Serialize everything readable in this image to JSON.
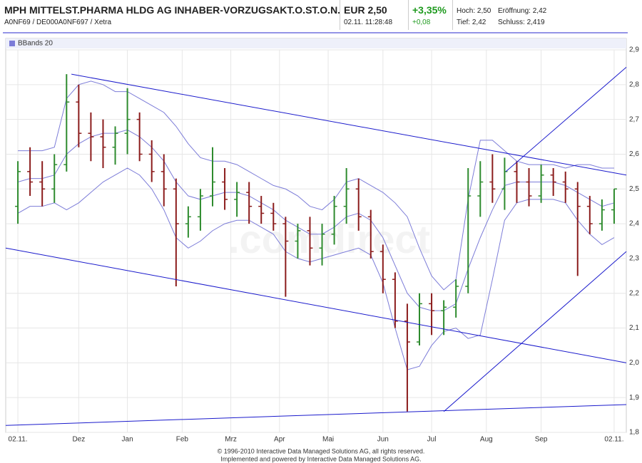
{
  "header": {
    "title": "MPH MITTELST.PHARMA HLDG AG INHABER-VORZUGSAKT.O.ST.O.N.",
    "subtitle": "A0NF69 / DE000A0NF697 / Xetra",
    "price": "EUR 2,50",
    "time": "02.11. 11:28:48",
    "change_pct": "+3,35%",
    "change_abs": "+0,08",
    "high": "Hoch: 2,50",
    "open": "Eröffnung: 2,42",
    "low": "Tief: 2,42",
    "close": "Schluss: 2,419"
  },
  "watermark": ".comdirect",
  "footer": [
    "© 1996-2010 Interactive Data Managed Solutions AG, all rights reserved.",
    "Implemented and powered by Interactive Data Managed Solutions AG."
  ],
  "chart_data": {
    "type": "ohlc",
    "up_color": "#2e8b2e",
    "down_color": "#8b1c1c",
    "grid": true,
    "xlim": [
      -1,
      50
    ],
    "xticks": [
      {
        "value": 0,
        "label": "02.11."
      },
      {
        "value": 5,
        "label": "Dez"
      },
      {
        "value": 9,
        "label": "Jan"
      },
      {
        "value": 13.5,
        "label": "Feb"
      },
      {
        "value": 17.5,
        "label": "Mrz"
      },
      {
        "value": 21.5,
        "label": "Apr"
      },
      {
        "value": 25.5,
        "label": "Mai"
      },
      {
        "value": 30,
        "label": "Jun"
      },
      {
        "value": 34,
        "label": "Jul"
      },
      {
        "value": 38.5,
        "label": "Aug"
      },
      {
        "value": 43,
        "label": "Sep"
      },
      {
        "value": 49,
        "label": "02.11."
      }
    ],
    "ylim": [
      1.8,
      2.9
    ],
    "yticks": [
      {
        "value": 1.8,
        "label": "1,8"
      },
      {
        "value": 1.9,
        "label": "1,9"
      },
      {
        "value": 2.0,
        "label": "2,0"
      },
      {
        "value": 2.1,
        "label": "2,1"
      },
      {
        "value": 2.2,
        "label": "2,2"
      },
      {
        "value": 2.3,
        "label": "2,3"
      },
      {
        "value": 2.4,
        "label": "2,4"
      },
      {
        "value": 2.5,
        "label": "2,5"
      },
      {
        "value": 2.6,
        "label": "2,6"
      },
      {
        "value": 2.7,
        "label": "2,7"
      },
      {
        "value": 2.8,
        "label": "2,8"
      },
      {
        "value": 2.9,
        "label": "2,9"
      }
    ],
    "ohlc": [
      [
        2.45,
        2.58,
        2.4,
        2.55
      ],
      [
        2.55,
        2.62,
        2.48,
        2.52
      ],
      [
        2.52,
        2.58,
        2.45,
        2.5
      ],
      [
        2.5,
        2.6,
        2.46,
        2.57
      ],
      [
        2.57,
        2.83,
        2.55,
        2.75
      ],
      [
        2.75,
        2.8,
        2.62,
        2.66
      ],
      [
        2.66,
        2.72,
        2.58,
        2.65
      ],
      [
        2.65,
        2.7,
        2.56,
        2.62
      ],
      [
        2.62,
        2.68,
        2.57,
        2.66
      ],
      [
        2.66,
        2.79,
        2.6,
        2.7
      ],
      [
        2.7,
        2.72,
        2.58,
        2.6
      ],
      [
        2.6,
        2.64,
        2.52,
        2.55
      ],
      [
        2.55,
        2.6,
        2.45,
        2.5
      ],
      [
        2.5,
        2.53,
        2.22,
        2.4
      ],
      [
        2.4,
        2.45,
        2.36,
        2.42
      ],
      [
        2.42,
        2.5,
        2.38,
        2.48
      ],
      [
        2.48,
        2.62,
        2.45,
        2.52
      ],
      [
        2.52,
        2.56,
        2.44,
        2.47
      ],
      [
        2.47,
        2.52,
        2.42,
        2.49
      ],
      [
        2.49,
        2.52,
        2.4,
        2.45
      ],
      [
        2.45,
        2.48,
        2.4,
        2.43
      ],
      [
        2.43,
        2.46,
        2.38,
        2.4
      ],
      [
        2.4,
        2.42,
        2.19,
        2.35
      ],
      [
        2.35,
        2.4,
        2.3,
        2.38
      ],
      [
        2.38,
        2.42,
        2.28,
        2.33
      ],
      [
        2.33,
        2.4,
        2.28,
        2.37
      ],
      [
        2.37,
        2.48,
        2.34,
        2.45
      ],
      [
        2.45,
        2.56,
        2.4,
        2.5
      ],
      [
        2.5,
        2.53,
        2.38,
        2.42
      ],
      [
        2.42,
        2.44,
        2.3,
        2.32
      ],
      [
        2.32,
        2.34,
        2.2,
        2.24
      ],
      [
        2.24,
        2.26,
        2.1,
        2.12
      ],
      [
        2.12,
        2.17,
        1.86,
        2.06
      ],
      [
        2.06,
        2.2,
        2.05,
        2.17
      ],
      [
        2.17,
        2.2,
        2.08,
        2.15
      ],
      [
        2.15,
        2.18,
        2.08,
        2.16
      ],
      [
        2.16,
        2.24,
        2.13,
        2.22
      ],
      [
        2.22,
        2.56,
        2.2,
        2.48
      ],
      [
        2.48,
        2.58,
        2.42,
        2.52
      ],
      [
        2.52,
        2.6,
        2.46,
        2.5
      ],
      [
        2.5,
        2.59,
        2.44,
        2.55
      ],
      [
        2.55,
        2.58,
        2.46,
        2.52
      ],
      [
        2.52,
        2.56,
        2.45,
        2.48
      ],
      [
        2.48,
        2.57,
        2.46,
        2.54
      ],
      [
        2.54,
        2.56,
        2.48,
        2.52
      ],
      [
        2.52,
        2.55,
        2.46,
        2.5
      ],
      [
        2.5,
        2.52,
        2.25,
        2.45
      ],
      [
        2.45,
        2.48,
        2.37,
        2.4
      ],
      [
        2.4,
        2.47,
        2.38,
        2.44
      ],
      [
        2.44,
        2.5,
        2.4,
        2.5
      ]
    ],
    "indicator": {
      "name": "BBands 20",
      "color": "#7c7cd8",
      "upper": [
        2.61,
        2.61,
        2.61,
        2.62,
        2.76,
        2.8,
        2.81,
        2.8,
        2.78,
        2.78,
        2.76,
        2.74,
        2.72,
        2.68,
        2.63,
        2.59,
        2.58,
        2.58,
        2.57,
        2.55,
        2.53,
        2.51,
        2.5,
        2.48,
        2.45,
        2.44,
        2.47,
        2.52,
        2.53,
        2.51,
        2.49,
        2.46,
        2.42,
        2.33,
        2.25,
        2.21,
        2.24,
        2.47,
        2.64,
        2.64,
        2.61,
        2.58,
        2.57,
        2.57,
        2.57,
        2.56,
        2.57,
        2.57,
        2.56,
        2.56
      ],
      "middle": [
        2.52,
        2.53,
        2.53,
        2.54,
        2.6,
        2.63,
        2.65,
        2.66,
        2.66,
        2.67,
        2.65,
        2.62,
        2.58,
        2.52,
        2.48,
        2.47,
        2.48,
        2.49,
        2.49,
        2.48,
        2.46,
        2.44,
        2.41,
        2.39,
        2.37,
        2.37,
        2.39,
        2.42,
        2.43,
        2.41,
        2.36,
        2.28,
        2.2,
        2.16,
        2.15,
        2.15,
        2.17,
        2.27,
        2.36,
        2.44,
        2.51,
        2.52,
        2.52,
        2.52,
        2.52,
        2.51,
        2.49,
        2.47,
        2.45,
        2.46
      ],
      "lower": [
        2.43,
        2.45,
        2.45,
        2.46,
        2.44,
        2.46,
        2.49,
        2.52,
        2.54,
        2.56,
        2.54,
        2.5,
        2.44,
        2.36,
        2.33,
        2.35,
        2.38,
        2.4,
        2.41,
        2.41,
        2.39,
        2.37,
        2.32,
        2.3,
        2.29,
        2.3,
        2.31,
        2.32,
        2.33,
        2.31,
        2.23,
        2.1,
        1.98,
        1.99,
        2.05,
        2.09,
        2.1,
        2.07,
        2.08,
        2.24,
        2.41,
        2.46,
        2.47,
        2.47,
        2.47,
        2.46,
        2.41,
        2.37,
        2.34,
        2.36
      ]
    },
    "trend_color": "#1a1acc",
    "trend_lines": [
      {
        "x": [
          4.4,
          50
        ],
        "y": [
          2.83,
          2.54
        ]
      },
      {
        "x": [
          -1,
          50
        ],
        "y": [
          2.33,
          2.0
        ]
      },
      {
        "x": [
          -1,
          50
        ],
        "y": [
          1.82,
          1.88
        ]
      },
      {
        "x": [
          35,
          50
        ],
        "y": [
          1.86,
          2.32
        ]
      },
      {
        "x": [
          40.1,
          50
        ],
        "y": [
          2.55,
          2.85
        ]
      }
    ]
  }
}
